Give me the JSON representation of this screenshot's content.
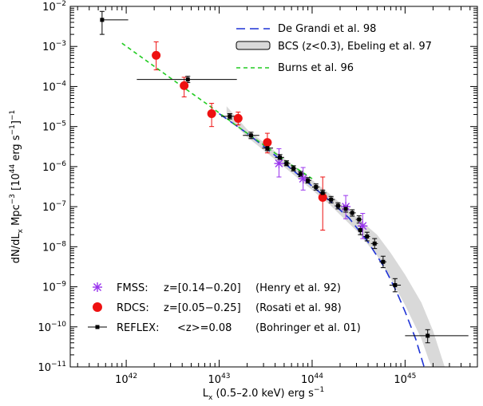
{
  "chart_data": {
    "type": "scatter",
    "x_scale": "log",
    "y_scale": "log",
    "xlim": [
      2.5e+41,
      6e+45
    ],
    "ylim": [
      1e-11,
      0.01
    ],
    "xlabel": {
      "main": "L",
      "sub": "x",
      "rest": " (0.5–2.0 keV) erg s",
      "sup": "−1"
    },
    "ylabel": {
      "p1": "dN/dL",
      "s1": "x",
      "p2": " Mpc",
      "e1": "−3",
      "p3": " [10",
      "e2": "44",
      "p4": " erg s",
      "e3": "−1",
      "p5": "]",
      "e4": "−1"
    },
    "x_ticks": [
      {
        "value": 1e+42,
        "base": "10",
        "exp": "42"
      },
      {
        "value": 1e+43,
        "base": "10",
        "exp": "43"
      },
      {
        "value": 1e+44,
        "base": "10",
        "exp": "44"
      },
      {
        "value": 1e+45,
        "base": "10",
        "exp": "45"
      }
    ],
    "y_ticks": [
      {
        "value": 0.01,
        "base": "10",
        "exp": "−2"
      },
      {
        "value": 0.001,
        "base": "10",
        "exp": "−3"
      },
      {
        "value": 0.0001,
        "base": "10",
        "exp": "−4"
      },
      {
        "value": 1e-05,
        "base": "10",
        "exp": "−5"
      },
      {
        "value": 1e-06,
        "base": "10",
        "exp": "−6"
      },
      {
        "value": 1e-07,
        "base": "10",
        "exp": "−7"
      },
      {
        "value": 1e-08,
        "base": "10",
        "exp": "−8"
      },
      {
        "value": 1e-09,
        "base": "10",
        "exp": "−9"
      },
      {
        "value": 1e-10,
        "base": "10",
        "exp": "−10"
      },
      {
        "value": 1e-11,
        "base": "10",
        "exp": "−11"
      }
    ],
    "legend_top": [
      {
        "label": "De Grandi et al. 98",
        "style": "dashed",
        "color": "#1f33d6"
      },
      {
        "label": "BCS (z<0.3), Ebeling et al. 97",
        "style": "band",
        "color": "#d9d9d9"
      },
      {
        "label": "Burns et al. 96",
        "style": "dashed",
        "color": "#22cc22"
      }
    ],
    "legend_bottom": [
      {
        "name": "FMSS:",
        "z": "z=[0.14−0.20]",
        "ref": "(Henry et al. 92)",
        "marker": "asterisk",
        "color": "#9933ee"
      },
      {
        "name": "RDCS:",
        "z": "z=[0.05−0.25]",
        "ref": "(Rosati et al. 98)",
        "marker": "circle",
        "color": "#ee1111"
      },
      {
        "name": "REFLEX:",
        "z": "<z>=0.08",
        "ref": "(Bohringer et al. 01)",
        "marker": "square",
        "color": "#000000"
      }
    ],
    "series": [
      {
        "name": "FMSS:",
        "color": "#9933ee",
        "marker": "asterisk",
        "points": [
          {
            "x": 4.4e+43,
            "y": 1.2e-06,
            "ylo": 5.5e-07,
            "yhi": 2.8e-06
          },
          {
            "x": 8e+43,
            "y": 5e-07,
            "ylo": 2.6e-07,
            "yhi": 9.5e-07
          },
          {
            "x": 2.3e+44,
            "y": 1e-07,
            "ylo": 5e-08,
            "yhi": 1.9e-07
          },
          {
            "x": 3.5e+44,
            "y": 3.3e-08,
            "ylo": 1.6e-08,
            "yhi": 6.8e-08
          }
        ]
      },
      {
        "name": "RDCS:",
        "color": "#ee1111",
        "marker": "circle",
        "points": [
          {
            "x": 2.1e+42,
            "y": 0.0006,
            "ylo": 0.00026,
            "yhi": 0.0013
          },
          {
            "x": 4.2e+42,
            "y": 0.000105,
            "ylo": 5.5e-05,
            "yhi": 0.00017
          },
          {
            "x": 8.3e+42,
            "y": 2.1e-05,
            "ylo": 1e-05,
            "yhi": 3.8e-05
          },
          {
            "x": 1.6e+43,
            "y": 1.6e-05,
            "ylo": 1.1e-05,
            "yhi": 2.3e-05
          },
          {
            "x": 3.3e+43,
            "y": 4e-06,
            "ylo": 2.2e-06,
            "yhi": 6.8e-06
          },
          {
            "x": 1.3e+44,
            "y": 1.7e-07,
            "ylo": 2.6e-08,
            "yhi": 5.5e-07
          }
        ]
      },
      {
        "name": "REFLEX:",
        "color": "#000000",
        "marker": "square",
        "points": [
          {
            "x": 5.5e+41,
            "y": 0.0046,
            "ylo": 0.002,
            "yhi": 0.0075,
            "xlo": 5.5e+41,
            "xhi": 1.05e+42
          },
          {
            "x": 4.6e+42,
            "y": 0.00015,
            "ylo": 0.000125,
            "yhi": 0.00018,
            "xlo": 1.3e+42,
            "xhi": 1.55e+43
          },
          {
            "x": 1.3e+43,
            "y": 1.8e-05,
            "ylo": 1.55e-05,
            "yhi": 2.1e-05,
            "xlo": 1.05e+43,
            "xhi": 1.6e+43
          },
          {
            "x": 2.2e+43,
            "y": 6e-06,
            "ylo": 5e-06,
            "yhi": 7.2e-06,
            "xlo": 1.8e+43,
            "xhi": 2.7e+43
          },
          {
            "x": 3.3e+43,
            "y": 2.9e-06,
            "ylo": 2.5e-06,
            "yhi": 3.4e-06,
            "xlo": 2.9e+43,
            "xhi": 3.8e+43
          },
          {
            "x": 4.5e+43,
            "y": 1.7e-06,
            "ylo": 1.5e-06,
            "yhi": 2e-06,
            "xlo": 4e+43,
            "xhi": 5e+43
          },
          {
            "x": 5.3e+43,
            "y": 1.2e-06,
            "ylo": 1.05e-06,
            "yhi": 1.4e-06,
            "xlo": 4.9e+43,
            "xhi": 5.8e+43
          },
          {
            "x": 6.3e+43,
            "y": 9e-07,
            "ylo": 7.8e-07,
            "yhi": 1.05e-06,
            "xlo": 5.8e+43,
            "xhi": 6.8e+43
          },
          {
            "x": 7.5e+43,
            "y": 6.5e-07,
            "ylo": 5.6e-07,
            "yhi": 7.6e-07,
            "xlo": 6.9e+43,
            "xhi": 8.2e+43
          },
          {
            "x": 9e+43,
            "y": 4.5e-07,
            "ylo": 3.9e-07,
            "yhi": 5.3e-07,
            "xlo": 8.2e+43,
            "xhi": 9.8e+43
          },
          {
            "x": 1.1e+44,
            "y": 3.1e-07,
            "ylo": 2.6e-07,
            "yhi": 3.7e-07,
            "xlo": 1e+44,
            "xhi": 1.2e+44
          },
          {
            "x": 1.3e+44,
            "y": 2.2e-07,
            "ylo": 1.85e-07,
            "yhi": 2.6e-07,
            "xlo": 1.2e+44,
            "xhi": 1.42e+44
          },
          {
            "x": 1.6e+44,
            "y": 1.5e-07,
            "ylo": 1.25e-07,
            "yhi": 1.8e-07,
            "xlo": 1.45e+44,
            "xhi": 1.75e+44
          },
          {
            "x": 1.9e+44,
            "y": 1.05e-07,
            "ylo": 8.8e-08,
            "yhi": 1.25e-07,
            "xlo": 1.75e+44,
            "xhi": 2.05e+44
          },
          {
            "x": 2.3e+44,
            "y": 8.8e-08,
            "ylo": 7.3e-08,
            "yhi": 1.05e-07,
            "xlo": 2.1e+44,
            "xhi": 2.5e+44
          },
          {
            "x": 2.7e+44,
            "y": 7e-08,
            "ylo": 5.8e-08,
            "yhi": 8.4e-08,
            "xlo": 2.5e+44,
            "xhi": 2.95e+44
          },
          {
            "x": 3.2e+44,
            "y": 4.8e-08,
            "ylo": 3.9e-08,
            "yhi": 5.9e-08,
            "xlo": 2.95e+44,
            "xhi": 3.45e+44
          },
          {
            "x": 3.3e+44,
            "y": 2.6e-08,
            "ylo": 2e-08,
            "yhi": 3.3e-08,
            "xlo": 3.1e+44,
            "xhi": 3.55e+44
          },
          {
            "x": 3.9e+44,
            "y": 1.8e-08,
            "ylo": 1.4e-08,
            "yhi": 2.3e-08,
            "xlo": 3.6e+44,
            "xhi": 4.2e+44
          },
          {
            "x": 4.7e+44,
            "y": 1.2e-08,
            "ylo": 9e-09,
            "yhi": 1.6e-08,
            "xlo": 4.3e+44,
            "xhi": 5.1e+44
          },
          {
            "x": 5.8e+44,
            "y": 4.2e-09,
            "ylo": 3e-09,
            "yhi": 5.8e-09,
            "xlo": 5.3e+44,
            "xhi": 6.3e+44
          },
          {
            "x": 7.8e+44,
            "y": 1.1e-09,
            "ylo": 7.5e-10,
            "yhi": 1.6e-09,
            "xlo": 6.8e+44,
            "xhi": 9e+44
          },
          {
            "x": 1.75e+45,
            "y": 6e-11,
            "ylo": 4e-11,
            "yhi": 8.5e-11,
            "xlo": 1e+45,
            "xhi": 4.8e+45
          }
        ]
      }
    ],
    "curves": [
      {
        "name": "De Grandi et al. 98",
        "style": "dashed",
        "color": "#1f33d6",
        "points": [
          [
            1e+43,
            2.1e-05
          ],
          [
            2e+43,
            6.8e-06
          ],
          [
            4e+43,
            1.9e-06
          ],
          [
            8e+43,
            5e-07
          ],
          [
            1.5e+44,
            1.5e-07
          ],
          [
            2.5e+44,
            5.2e-08
          ],
          [
            4e+44,
            1.3e-08
          ],
          [
            6e+44,
            3e-09
          ],
          [
            8e+44,
            8e-10
          ],
          [
            1e+45,
            2.4e-10
          ],
          [
            1.3e+45,
            5e-11
          ],
          [
            1.6e+45,
            1e-11
          ],
          [
            1.85e+45,
            4e-12
          ]
        ]
      },
      {
        "name": "Burns et al. 96",
        "style": "dashed",
        "color": "#22cc22",
        "points": [
          [
            9e+41,
            0.0012
          ],
          [
            2e+42,
            0.00032
          ],
          [
            4e+42,
            0.0001
          ],
          [
            8e+42,
            3.2e-05
          ],
          [
            1.5e+43,
            1.1e-05
          ],
          [
            3e+43,
            3.5e-06
          ],
          [
            6e+43,
            1.1e-06
          ],
          [
            1e+44,
            5e-07
          ]
        ]
      }
    ],
    "band": {
      "name": "BCS (z<0.3), Ebeling et al. 97",
      "color": "#d9d9d9",
      "upper": [
        [
          1.2e+43,
          3.2e-05
        ],
        [
          2e+43,
          8.5e-06
        ],
        [
          4e+43,
          2.4e-06
        ],
        [
          8e+43,
          7e-07
        ],
        [
          1.5e+44,
          2.2e-07
        ],
        [
          3e+44,
          5.5e-08
        ],
        [
          5e+44,
          2e-08
        ],
        [
          7e+44,
          7e-09
        ],
        [
          1e+45,
          2e-09
        ],
        [
          1.5e+45,
          4e-10
        ],
        [
          2e+45,
          8e-11
        ],
        [
          2.5e+45,
          1.6e-11
        ],
        [
          2.8e+45,
          7e-12
        ]
      ],
      "lower": [
        [
          1.2e+43,
          1.8e-05
        ],
        [
          2e+43,
          5.5e-06
        ],
        [
          4e+43,
          1.5e-06
        ],
        [
          8e+43,
          4e-07
        ],
        [
          1.5e+44,
          1.2e-07
        ],
        [
          3e+44,
          2.5e-08
        ],
        [
          5e+44,
          6e-09
        ],
        [
          7e+44,
          1.6e-09
        ],
        [
          1e+45,
          3.5e-10
        ],
        [
          1.5e+45,
          5e-11
        ],
        [
          1.8e+45,
          1.5e-11
        ],
        [
          2.2e+45,
          5e-12
        ]
      ]
    }
  }
}
